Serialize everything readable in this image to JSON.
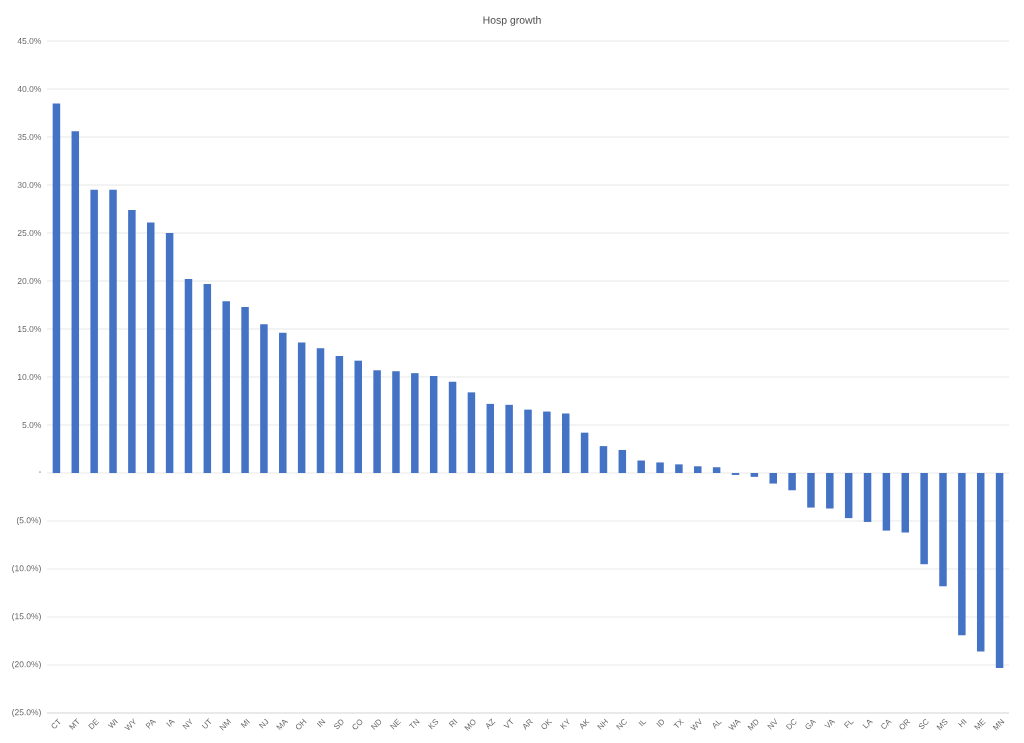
{
  "chart_data": {
    "type": "bar",
    "title": "Hosp growth",
    "categories": [
      "CT",
      "MT",
      "DE",
      "WI",
      "WY",
      "PA",
      "IA",
      "NY",
      "UT",
      "NM",
      "MI",
      "NJ",
      "MA",
      "OH",
      "IN",
      "SD",
      "CO",
      "ND",
      "NE",
      "TN",
      "KS",
      "RI",
      "MO",
      "AZ",
      "VT",
      "AR",
      "OK",
      "KY",
      "AK",
      "NH",
      "NC",
      "IL",
      "ID",
      "TX",
      "WV",
      "AL",
      "WA",
      "MD",
      "NV",
      "DC",
      "GA",
      "VA",
      "FL",
      "LA",
      "CA",
      "OR",
      "SC",
      "MS",
      "HI",
      "ME",
      "MN"
    ],
    "values": [
      38.5,
      35.6,
      29.5,
      29.5,
      27.4,
      26.1,
      25.0,
      20.2,
      19.7,
      17.9,
      17.3,
      15.5,
      14.6,
      13.6,
      13.0,
      12.2,
      11.7,
      10.7,
      10.6,
      10.4,
      10.1,
      9.5,
      8.4,
      7.2,
      7.1,
      6.6,
      6.4,
      6.2,
      4.2,
      2.8,
      2.4,
      1.3,
      1.1,
      0.9,
      0.7,
      0.6,
      -0.2,
      -0.4,
      -1.1,
      -1.8,
      -3.6,
      -3.7,
      -4.7,
      -5.1,
      -6.0,
      -6.2,
      -9.5,
      -11.8,
      -16.9,
      -18.6,
      -20.3
    ],
    "color": "#4472c4",
    "ylim": [
      -25,
      45
    ],
    "yticks": [
      {
        "value": -25,
        "label": "(25.0%)"
      },
      {
        "value": -20,
        "label": "(20.0%)"
      },
      {
        "value": -15,
        "label": "(15.0%)"
      },
      {
        "value": -10,
        "label": "(10.0%)"
      },
      {
        "value": -5,
        "label": "(5.0%)"
      },
      {
        "value": 0,
        "label": "-"
      },
      {
        "value": 5,
        "label": "5.0%"
      },
      {
        "value": 10,
        "label": "10.0%"
      },
      {
        "value": 15,
        "label": "15.0%"
      },
      {
        "value": 20,
        "label": "20.0%"
      },
      {
        "value": 25,
        "label": "25.0%"
      },
      {
        "value": 30,
        "label": "30.0%"
      },
      {
        "value": 35,
        "label": "35.0%"
      },
      {
        "value": 40,
        "label": "40.0%"
      },
      {
        "value": 45,
        "label": "45.0%"
      }
    ],
    "grid": "y"
  }
}
